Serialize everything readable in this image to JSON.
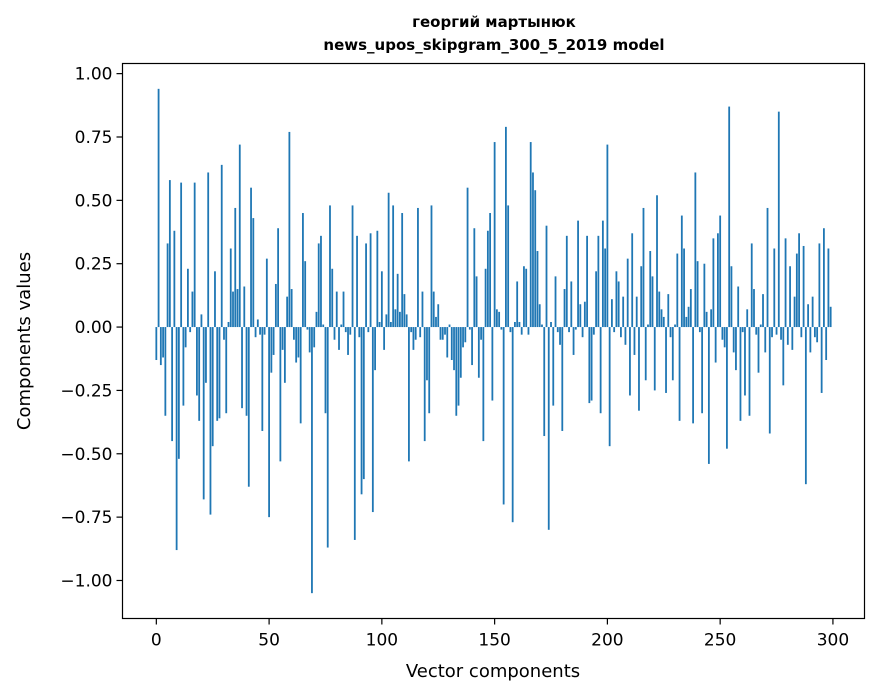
{
  "chart_data": {
    "type": "bar",
    "title": "георгий мартынюк",
    "subtitle": "news_upos_skipgram_300_5_2019 model",
    "xlabel": "Vector components",
    "ylabel": "Components values",
    "xlim": [
      -15,
      314
    ],
    "ylim": [
      -1.15,
      1.04
    ],
    "x_ticks": [
      0,
      50,
      100,
      150,
      200,
      250,
      300
    ],
    "y_ticks": [
      -1.0,
      -0.75,
      -0.5,
      -0.25,
      0.0,
      0.25,
      0.5,
      0.75,
      1.0
    ],
    "y_tick_labels": [
      "−1.00",
      "−0.75",
      "−0.50",
      "−0.25",
      "0.00",
      "0.25",
      "0.50",
      "0.75",
      "1.00"
    ],
    "bar_color": "#1f77b4",
    "grid": false,
    "values": [
      -0.13,
      0.94,
      -0.15,
      -0.12,
      -0.35,
      0.33,
      0.58,
      -0.45,
      0.38,
      -0.88,
      -0.52,
      0.57,
      -0.31,
      -0.08,
      0.23,
      -0.02,
      0.14,
      0.57,
      -0.27,
      -0.37,
      0.05,
      -0.68,
      -0.22,
      0.61,
      -0.74,
      -0.47,
      0.22,
      -0.37,
      -0.36,
      0.64,
      -0.05,
      -0.34,
      0.02,
      0.31,
      0.14,
      0.47,
      0.15,
      0.72,
      -0.32,
      0.16,
      -0.35,
      -0.63,
      0.55,
      0.43,
      -0.04,
      0.03,
      -0.03,
      -0.41,
      -0.03,
      0.27,
      -0.75,
      -0.18,
      -0.11,
      0.17,
      0.39,
      -0.53,
      -0.09,
      -0.22,
      0.12,
      0.77,
      0.15,
      -0.05,
      -0.14,
      -0.12,
      -0.38,
      0.45,
      0.26,
      -0.01,
      -0.1,
      -1.05,
      -0.08,
      0.06,
      0.33,
      0.36,
      0.01,
      -0.34,
      -0.87,
      0.48,
      0.23,
      -0.05,
      0.14,
      -0.09,
      0.01,
      0.14,
      -0.02,
      -0.11,
      -0.03,
      0.48,
      -0.84,
      0.36,
      -0.04,
      -0.66,
      -0.6,
      0.33,
      -0.02,
      0.37,
      -0.73,
      -0.17,
      0.38,
      0.02,
      0.22,
      -0.09,
      0.05,
      0.53,
      0.02,
      0.48,
      0.07,
      0.21,
      0.06,
      0.45,
      0.13,
      0.05,
      -0.53,
      -0.02,
      -0.09,
      -0.05,
      0.47,
      -0.04,
      0.14,
      -0.45,
      -0.21,
      -0.34,
      0.48,
      0.14,
      0.04,
      0.09,
      -0.05,
      -0.05,
      -0.03,
      -0.12,
      0.01,
      -0.13,
      -0.17,
      -0.35,
      -0.31,
      -0.2,
      -0.08,
      -0.06,
      0.55,
      -0.01,
      -0.15,
      0.39,
      0.2,
      -0.2,
      -0.05,
      -0.45,
      0.23,
      0.38,
      0.45,
      -0.29,
      0.73,
      0.07,
      0.06,
      -0.01,
      -0.7,
      0.79,
      0.48,
      -0.02,
      -0.77,
      0.02,
      0.18,
      0.02,
      -0.03,
      0.24,
      0.23,
      -0.03,
      0.73,
      0.61,
      0.54,
      0.3,
      0.09,
      0.01,
      -0.43,
      0.4,
      -0.8,
      0.02,
      -0.31,
      0.2,
      -0.02,
      -0.07,
      -0.41,
      0.15,
      0.36,
      -0.02,
      0.18,
      -0.11,
      -0.01,
      0.42,
      0.09,
      -0.04,
      0.1,
      0.36,
      -0.3,
      -0.29,
      -0.03,
      0.22,
      0.36,
      -0.34,
      0.42,
      0.31,
      0.72,
      -0.47,
      0.11,
      -0.02,
      0.22,
      0.18,
      -0.04,
      0.12,
      -0.07,
      0.27,
      -0.27,
      0.37,
      -0.11,
      0.12,
      -0.33,
      0.24,
      0.47,
      -0.21,
      0.01,
      0.3,
      0.2,
      -0.25,
      0.52,
      0.14,
      0.07,
      0.04,
      -0.26,
      0.13,
      -0.04,
      -0.21,
      0.01,
      0.29,
      -0.37,
      0.44,
      0.31,
      0.04,
      0.08,
      0.15,
      -0.38,
      0.61,
      0.26,
      -0.02,
      -0.34,
      0.25,
      0.06,
      -0.54,
      0.07,
      0.35,
      -0.14,
      0.37,
      0.44,
      -0.05,
      -0.08,
      -0.48,
      0.87,
      0.24,
      -0.1,
      -0.17,
      0.16,
      -0.37,
      -0.02,
      -0.27,
      0.07,
      -0.35,
      0.33,
      0.15,
      -0.03,
      -0.18,
      0.01,
      0.13,
      -0.1,
      0.47,
      -0.42,
      -0.04,
      0.31,
      -0.03,
      0.85,
      -0.05,
      -0.23,
      0.35,
      -0.07,
      0.24,
      -0.09,
      0.12,
      0.29,
      0.37,
      -0.04,
      0.32,
      -0.62,
      0.09,
      -0.1,
      0.12,
      -0.04,
      -0.06,
      0.33,
      -0.26,
      0.39,
      -0.13,
      0.31,
      0.08
    ]
  }
}
